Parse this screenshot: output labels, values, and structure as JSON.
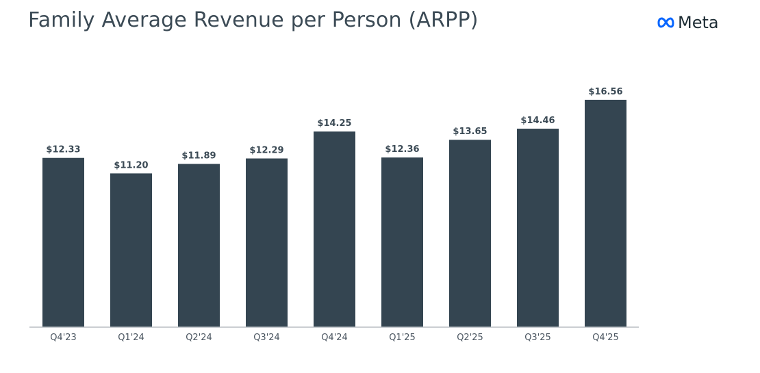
{
  "title": "Family Average Revenue per Person (ARPP)",
  "logo": {
    "text": "Meta",
    "icon": "meta-infinity-logo",
    "color": "#0866ff"
  },
  "chart_data": {
    "type": "bar",
    "title": "Family Average Revenue per Person (ARPP)",
    "categories": [
      "Q4'23",
      "Q1'24",
      "Q2'24",
      "Q3'24",
      "Q4'24",
      "Q1'25",
      "Q2'25",
      "Q3'25",
      "Q4'25"
    ],
    "values": [
      12.33,
      11.2,
      11.89,
      12.29,
      14.25,
      12.36,
      13.65,
      14.46,
      16.56
    ],
    "data_labels": [
      "$12.33",
      "$11.20",
      "$11.89",
      "$12.29",
      "$14.25",
      "$12.36",
      "$13.65",
      "$14.46",
      "$16.56"
    ],
    "xlabel": "",
    "ylabel": "",
    "ylim": [
      0,
      18
    ],
    "grid": false,
    "bar_color": "#344551",
    "axis_color": "#b8bec3"
  }
}
